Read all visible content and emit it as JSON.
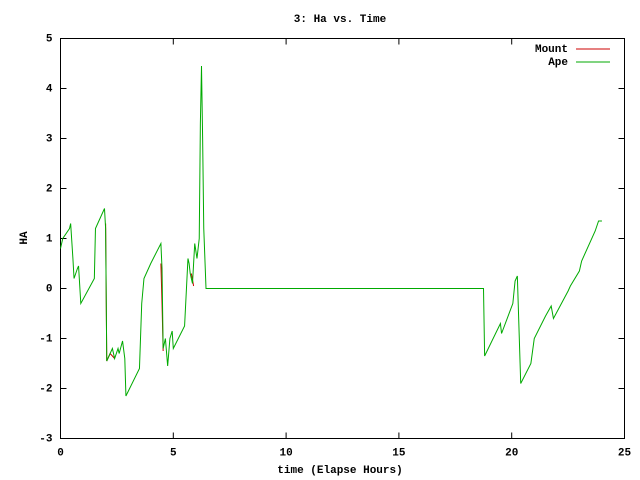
{
  "chart_data": {
    "type": "line",
    "title": "3: Ha vs. Time",
    "x_label": "time (Elapse Hours)",
    "y_label": "HA",
    "xlim": [
      0,
      25
    ],
    "xticks": [
      0,
      5,
      10,
      15,
      20,
      25
    ],
    "ylim": [
      -3,
      5
    ],
    "yticks": [
      -3,
      -2,
      -1,
      0,
      1,
      2,
      3,
      4,
      5
    ],
    "legend": "top-right",
    "series": [
      {
        "name": "Mount",
        "color": "#cc0000",
        "x": [
          2.0,
          2.05,
          2.2,
          2.4,
          3.0,
          4.45,
          4.5,
          4.55,
          5.0,
          5.8,
          5.9
        ],
        "values": [
          1.3,
          -1.45,
          -1.3,
          -1.4,
          null,
          0.5,
          -0.3,
          -1.25,
          null,
          0.3,
          0.05
        ]
      },
      {
        "name": "Ape",
        "color": "#00aa00",
        "x": [
          0,
          0.1,
          0.4,
          0.45,
          0.55,
          0.6,
          0.75,
          0.8,
          0.9,
          1.5,
          1.55,
          1.95,
          2.0,
          2.05,
          2.2,
          2.3,
          2.4,
          2.55,
          2.6,
          2.75,
          2.85,
          2.9,
          3.5,
          3.6,
          3.7,
          4.0,
          4.45,
          4.5,
          4.55,
          4.65,
          4.75,
          4.85,
          4.95,
          5.0,
          5.5,
          5.65,
          5.7,
          5.75,
          5.85,
          5.95,
          6.05,
          6.15,
          6.2,
          6.25,
          6.3,
          6.35,
          6.45,
          18.75,
          18.8,
          19.5,
          19.55,
          20.05,
          20.15,
          20.25,
          20.4,
          20.85,
          21.0,
          21.5,
          21.75,
          21.85,
          22.5,
          22.6,
          23.0,
          23.1,
          23.7,
          23.85,
          24.0
        ],
        "values": [
          0.8,
          1.0,
          1.2,
          1.3,
          0.6,
          0.2,
          0.4,
          0.45,
          -0.3,
          0.2,
          1.2,
          1.6,
          1.2,
          -1.45,
          -1.3,
          -1.2,
          -1.4,
          -1.2,
          -1.3,
          -1.05,
          -1.4,
          -2.15,
          -1.6,
          -0.3,
          0.2,
          0.5,
          0.9,
          0.4,
          -1.2,
          -1.0,
          -1.55,
          -1.0,
          -0.85,
          -1.2,
          -0.75,
          0.6,
          0.5,
          0.3,
          0.1,
          0.9,
          0.6,
          1.0,
          3.3,
          4.45,
          3.0,
          1.2,
          0,
          0,
          -1.35,
          -0.7,
          -0.9,
          -0.3,
          0.15,
          0.25,
          -1.9,
          -1.5,
          -1.0,
          -0.55,
          -0.35,
          -0.6,
          -0.05,
          0.05,
          0.35,
          0.55,
          1.15,
          1.35,
          1.35
        ]
      }
    ]
  }
}
